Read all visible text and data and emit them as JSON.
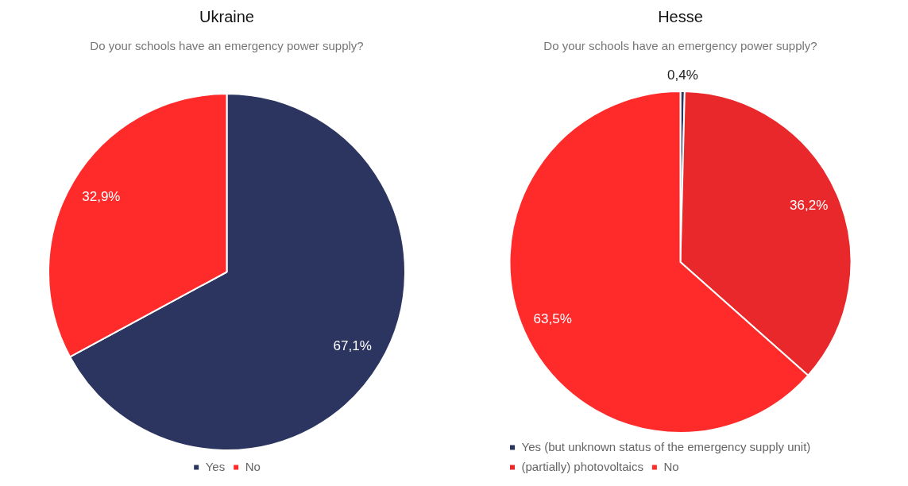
{
  "chart_data": [
    {
      "type": "pie",
      "title": "Ukraine",
      "subtitle": "Do your schools have an emergency power supply?",
      "categories": [
        "Yes",
        "No"
      ],
      "values": [
        67.1,
        32.9
      ],
      "colors": [
        "#2b3560",
        "#ff2b2b"
      ],
      "value_labels": [
        "67,1%",
        "32,9%"
      ],
      "legend": "bottom"
    },
    {
      "type": "pie",
      "title": "Hesse",
      "subtitle": "Do your schools have an emergency power supply?",
      "categories": [
        "Yes (but unknown status of the emergency supply unit)",
        "(partially) photovoltaics",
        "No"
      ],
      "values": [
        0.4,
        36.2,
        63.5
      ],
      "colors": [
        "#2b3560",
        "#e8282b",
        "#ff2b2b"
      ],
      "value_labels": [
        "0,4%",
        "36,2%",
        "63,5%"
      ],
      "legend": "bottom"
    }
  ]
}
